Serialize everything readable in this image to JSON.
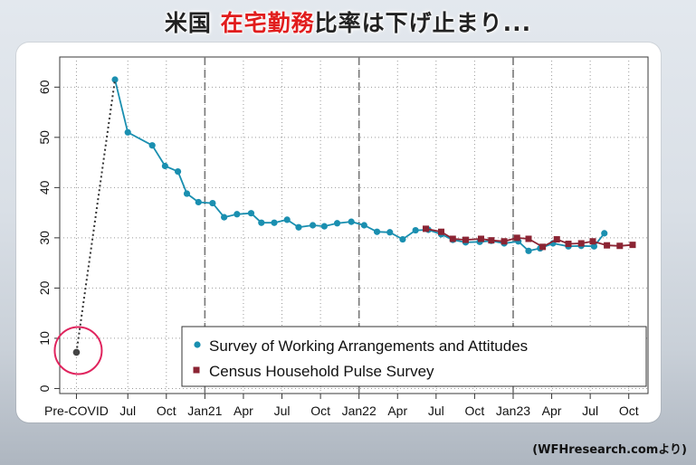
{
  "title": {
    "part1": "米国",
    "part2": "在宅勤務",
    "part3": "比率は下げ止まり..."
  },
  "credit": "(WFHresearch.comより)",
  "colors": {
    "swaa": "#1a8fb0",
    "pulse": "#8b2433",
    "highlight": "#e0245e",
    "title_highlight": "#e11d1d"
  },
  "chart_data": {
    "type": "line",
    "y_ticks": [
      0,
      10,
      20,
      30,
      40,
      50,
      60
    ],
    "ylim": [
      -1,
      66
    ],
    "x_ticks": [
      {
        "i": 0,
        "label": "Pre-COVID"
      },
      {
        "i": 4,
        "label": "Jul"
      },
      {
        "i": 7,
        "label": "Oct"
      },
      {
        "i": 10,
        "label": "Jan21"
      },
      {
        "i": 13,
        "label": "Apr"
      },
      {
        "i": 16,
        "label": "Jul"
      },
      {
        "i": 19,
        "label": "Oct"
      },
      {
        "i": 22,
        "label": "Jan22"
      },
      {
        "i": 25,
        "label": "Apr"
      },
      {
        "i": 28,
        "label": "Jul"
      },
      {
        "i": 31,
        "label": "Oct"
      },
      {
        "i": 34,
        "label": "Jan23"
      },
      {
        "i": 37,
        "label": "Apr"
      },
      {
        "i": 40,
        "label": "Jul"
      },
      {
        "i": 43,
        "label": "Oct"
      }
    ],
    "xlim": [
      -1.3,
      44.5
    ],
    "year_lines": [
      10,
      22,
      34
    ],
    "precovid_value": 7.2,
    "series": [
      {
        "name": "Survey of Working Arrangements and Attitudes",
        "color": "#1a8fb0",
        "marker": "circle",
        "points": [
          [
            3,
            61.5
          ],
          [
            4,
            51
          ],
          [
            5.9,
            48.4
          ],
          [
            6.9,
            44.3
          ],
          [
            7.9,
            43.2
          ],
          [
            8.6,
            38.8
          ],
          [
            9.5,
            37.1
          ],
          [
            10.6,
            36.9
          ],
          [
            11.5,
            34.1
          ],
          [
            12.5,
            34.7
          ],
          [
            13.6,
            34.9
          ],
          [
            14.4,
            33
          ],
          [
            15.4,
            33
          ],
          [
            16.4,
            33.6
          ],
          [
            17.3,
            32.1
          ],
          [
            18.4,
            32.5
          ],
          [
            19.3,
            32.3
          ],
          [
            20.3,
            32.9
          ],
          [
            21.4,
            33.2
          ],
          [
            22.4,
            32.5
          ],
          [
            23.4,
            31.2
          ],
          [
            24.4,
            31.1
          ],
          [
            25.4,
            29.7
          ],
          [
            26.4,
            31.5
          ],
          [
            27.4,
            31.6
          ],
          [
            28.4,
            30.7
          ],
          [
            29.3,
            29.6
          ],
          [
            30.3,
            29.1
          ],
          [
            31.4,
            29.2
          ],
          [
            32.3,
            29.4
          ],
          [
            33.3,
            28.9
          ],
          [
            34.4,
            29.3
          ],
          [
            35.2,
            27.4
          ],
          [
            36.1,
            27.9
          ],
          [
            37.1,
            28.9
          ],
          [
            38.3,
            28.3
          ],
          [
            39.3,
            28.4
          ],
          [
            40.3,
            28.3
          ],
          [
            41.1,
            30.9
          ]
        ]
      },
      {
        "name": "Census Household Pulse Survey",
        "color": "#8b2433",
        "marker": "square",
        "points": [
          [
            27.2,
            31.8
          ],
          [
            28.4,
            31.2
          ],
          [
            29.3,
            29.8
          ],
          [
            30.3,
            29.6
          ],
          [
            31.5,
            29.8
          ],
          [
            32.3,
            29.5
          ],
          [
            33.3,
            29.3
          ],
          [
            34.3,
            30
          ],
          [
            35.2,
            29.8
          ],
          [
            36.3,
            28.2
          ],
          [
            37.4,
            29.7
          ],
          [
            38.3,
            28.8
          ],
          [
            39.3,
            28.9
          ],
          [
            40.2,
            29.3
          ],
          [
            41.3,
            28.5
          ],
          [
            42.3,
            28.4
          ],
          [
            43.3,
            28.6
          ]
        ]
      }
    ],
    "legend": {
      "placement": "bottom-right"
    }
  }
}
